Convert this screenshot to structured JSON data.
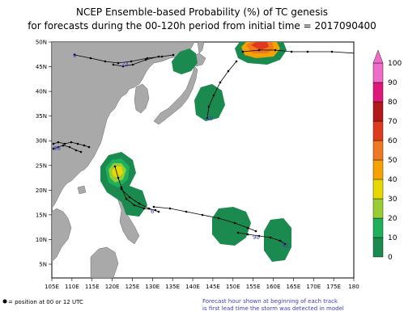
{
  "title_line1": "NCEP Ensemble-based Probability (%) of TC genesis",
  "title_line2": "for forecasts during the 00-120h period from initial time = 2017090400",
  "lon_ticks": [
    "105E",
    "110E",
    "115E",
    "120E",
    "125E",
    "130E",
    "135E",
    "140E",
    "145E",
    "150E",
    "155E",
    "160E",
    "165E",
    "170E",
    "175E",
    "180"
  ],
  "lat_ticks": [
    "5N",
    "10N",
    "15N",
    "20N",
    "25N",
    "30N",
    "35N",
    "40N",
    "45N",
    "50N"
  ],
  "colorbar": {
    "labels": [
      "0",
      "10",
      "20",
      "30",
      "40",
      "50",
      "60",
      "70",
      "80",
      "90",
      "100"
    ],
    "colors": [
      "#1a8a4e",
      "#1fb05c",
      "#9acd32",
      "#e6d800",
      "#f5a300",
      "#f07820",
      "#e03a1e",
      "#b41818",
      "#e0187a",
      "#f06cc8"
    ]
  },
  "track_labels": [
    "9",
    "24",
    "40",
    "42",
    "90",
    "96",
    "6"
  ],
  "legend_left": "= position at 00 or 12 UTC",
  "legend_right_line1": "Forecast hour shown at beginning of each track",
  "legend_right_line2": "is first lead time the storm was detected in model",
  "colors": {
    "land": "#a9a9a9",
    "ocean": "#ffffff",
    "track": "#000000",
    "label": "#4040c0"
  }
}
